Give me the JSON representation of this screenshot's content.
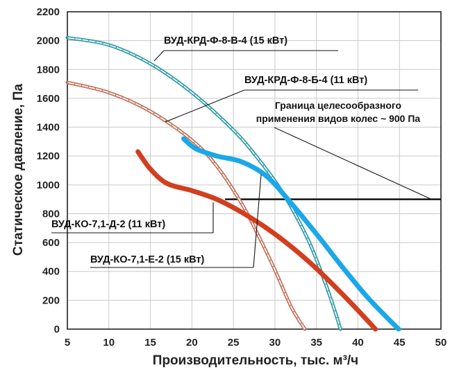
{
  "chart_data": {
    "type": "line",
    "title": "",
    "xlabel": "Производительность, тыс. м³/ч",
    "ylabel": "Статическое давление, Па",
    "xlim": [
      5,
      50
    ],
    "ylim": [
      0,
      2200
    ],
    "xticks": [
      "5",
      "10",
      "15",
      "20",
      "25",
      "30",
      "35",
      "40",
      "45",
      "50"
    ],
    "yticks": [
      "0",
      "200",
      "400",
      "600",
      "800",
      "1000",
      "1200",
      "1400",
      "1600",
      "1800",
      "2000",
      "2200"
    ],
    "grid": true,
    "legend": "none",
    "series": [
      {
        "name": "ВУД-КРД-Ф-8-В-4 (15 кВт)",
        "color": "#2a9aa8",
        "style": "double-line",
        "x": [
          5,
          10,
          15,
          20,
          25,
          28,
          31,
          34,
          36,
          37.2,
          37.9
        ],
        "y": [
          2020,
          1970,
          1840,
          1640,
          1380,
          1180,
          940,
          620,
          330,
          130,
          0
        ]
      },
      {
        "name": "ВУД-КРД-Ф-8-Б-4 (11 кВт)",
        "color": "#c0735a",
        "style": "double-line",
        "x": [
          5,
          10,
          15,
          20,
          23,
          26,
          28,
          30,
          32,
          33.6
        ],
        "y": [
          1710,
          1640,
          1510,
          1310,
          1130,
          870,
          650,
          410,
          150,
          0
        ]
      },
      {
        "name": "ВУД-КО-7,1-Е-2 (15 кВт)",
        "color": "#1aa8e8",
        "style": "thick",
        "x": [
          19,
          20.5,
          23,
          26,
          29,
          32,
          35,
          38,
          41,
          43.5,
          44.9
        ],
        "y": [
          1320,
          1250,
          1200,
          1160,
          1060,
          870,
          660,
          440,
          230,
          80,
          0
        ]
      },
      {
        "name": "ВУД-КО-7,1-Д-2 (11 кВт)",
        "color": "#d23e1e",
        "style": "thick",
        "x": [
          13.5,
          15,
          17,
          20,
          23,
          26,
          29,
          32,
          35,
          38,
          40.5,
          42.1
        ],
        "y": [
          1230,
          1110,
          1010,
          960,
          900,
          810,
          700,
          570,
          420,
          250,
          100,
          0
        ]
      }
    ],
    "reference_line": {
      "x": [
        24,
        50
      ],
      "y": [
        900,
        900
      ],
      "label": "Граница целесообразного применения видов колес ~ 900 Па"
    },
    "annotations": [
      "ВУД-КРД-Ф-8-В-4 (15 кВт)",
      "ВУД-КРД-Ф-8-Б-4 (11 кВт)",
      "Граница целесообразного",
      "применения видов колес ~ 900 Па",
      "ВУД-КО-7,1-Д-2 (11 кВт)",
      "ВУД-КО-7,1-Е-2 (15 кВт)"
    ]
  }
}
